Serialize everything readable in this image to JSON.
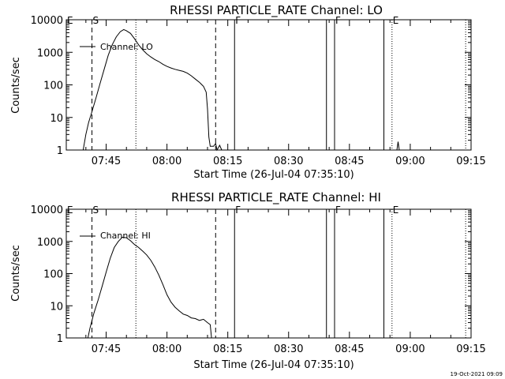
{
  "footer_date": "19-Oct-2021 09:09",
  "chart_data": [
    {
      "type": "line",
      "title": "RHESSI PARTICLE_RATE Channel: LO",
      "xlabel": "Start Time (26-Jul-04 07:35:10)",
      "ylabel": "Counts/sec",
      "y_scale": "log",
      "ylim": [
        1,
        10000
      ],
      "xlim": [
        "07:35:10",
        "09:15:00"
      ],
      "x_ticks": [
        "07:45",
        "08:00",
        "08:15",
        "08:30",
        "08:45",
        "09:00",
        "09:15"
      ],
      "y_ticks": [
        "1",
        "10",
        "100",
        "1000",
        "10000"
      ],
      "legend": {
        "label": "Channel: LO",
        "position": "top-left"
      },
      "markers": [
        {
          "label": "E",
          "time": "07:35:10",
          "style": "none"
        },
        {
          "label": "S",
          "time": "07:41:30",
          "style": "dashed"
        },
        {
          "label": "",
          "time": "07:52:20",
          "style": "dotted"
        },
        {
          "label": "",
          "time": "08:12:00",
          "style": "dashed"
        },
        {
          "label": "F",
          "time": "08:16:40",
          "style": "solid"
        },
        {
          "label": "",
          "time": "08:39:20",
          "style": "solid"
        },
        {
          "label": "F",
          "time": "08:41:20",
          "style": "solid"
        },
        {
          "label": "",
          "time": "08:53:30",
          "style": "solid"
        },
        {
          "label": "E",
          "time": "08:55:30",
          "style": "dotted"
        },
        {
          "label": "",
          "time": "09:13:40",
          "style": "dotted"
        }
      ],
      "series": [
        {
          "name": "Channel: LO",
          "points": [
            [
              "07:39:20",
              1
            ],
            [
              "07:40:00",
              3
            ],
            [
              "07:40:40",
              7
            ],
            [
              "07:41:30",
              15
            ],
            [
              "07:42:30",
              40
            ],
            [
              "07:43:30",
              110
            ],
            [
              "07:44:30",
              300
            ],
            [
              "07:45:30",
              800
            ],
            [
              "07:46:30",
              1700
            ],
            [
              "07:47:30",
              3000
            ],
            [
              "07:48:30",
              4300
            ],
            [
              "07:49:20",
              5000
            ],
            [
              "07:50:00",
              4600
            ],
            [
              "07:51:00",
              3800
            ],
            [
              "07:52:00",
              2600
            ],
            [
              "07:53:00",
              1700
            ],
            [
              "07:54:00",
              1200
            ],
            [
              "07:55:00",
              900
            ],
            [
              "07:56:00",
              720
            ],
            [
              "07:57:00",
              600
            ],
            [
              "07:58:00",
              520
            ],
            [
              "07:59:00",
              430
            ],
            [
              "08:00:00",
              370
            ],
            [
              "08:01:00",
              330
            ],
            [
              "08:02:00",
              300
            ],
            [
              "08:03:00",
              280
            ],
            [
              "08:04:00",
              260
            ],
            [
              "08:05:00",
              230
            ],
            [
              "08:06:00",
              190
            ],
            [
              "08:07:00",
              150
            ],
            [
              "08:08:00",
              120
            ],
            [
              "08:09:00",
              90
            ],
            [
              "08:09:40",
              60
            ],
            [
              "08:10:00",
              18
            ],
            [
              "08:10:20",
              2.5
            ],
            [
              "08:10:40",
              1.3
            ],
            [
              "08:11:30",
              1.3
            ],
            [
              "08:12:00",
              1.6
            ],
            [
              "08:12:20",
              1
            ],
            [
              "08:13:00",
              1.4
            ],
            [
              "08:13:30",
              1
            ]
          ],
          "spikes": [
            [
              "08:57:00",
              1.8
            ]
          ]
        }
      ]
    },
    {
      "type": "line",
      "title": "RHESSI PARTICLE_RATE Channel: HI",
      "xlabel": "Start Time (26-Jul-04 07:35:10)",
      "ylabel": "Counts/sec",
      "y_scale": "log",
      "ylim": [
        1,
        10000
      ],
      "xlim": [
        "07:35:10",
        "09:15:00"
      ],
      "x_ticks": [
        "07:45",
        "08:00",
        "08:15",
        "08:30",
        "08:45",
        "09:00",
        "09:15"
      ],
      "y_ticks": [
        "1",
        "10",
        "100",
        "1000",
        "10000"
      ],
      "legend": {
        "label": "Channel: HI",
        "position": "top-left"
      },
      "markers": [
        {
          "label": "E",
          "time": "07:35:10",
          "style": "none"
        },
        {
          "label": "S",
          "time": "07:41:30",
          "style": "dashed"
        },
        {
          "label": "",
          "time": "07:52:20",
          "style": "dotted"
        },
        {
          "label": "",
          "time": "08:12:00",
          "style": "dashed"
        },
        {
          "label": "F",
          "time": "08:16:40",
          "style": "solid"
        },
        {
          "label": "",
          "time": "08:39:20",
          "style": "solid"
        },
        {
          "label": "F",
          "time": "08:41:20",
          "style": "solid"
        },
        {
          "label": "",
          "time": "08:53:30",
          "style": "solid"
        },
        {
          "label": "E",
          "time": "08:55:30",
          "style": "dotted"
        },
        {
          "label": "",
          "time": "09:13:40",
          "style": "dotted"
        }
      ],
      "series": [
        {
          "name": "Channel: HI",
          "points": [
            [
              "07:40:30",
              1
            ],
            [
              "07:41:00",
              2
            ],
            [
              "07:42:00",
              6
            ],
            [
              "07:43:00",
              15
            ],
            [
              "07:44:00",
              40
            ],
            [
              "07:45:00",
              110
            ],
            [
              "07:46:00",
              300
            ],
            [
              "07:47:00",
              650
            ],
            [
              "07:48:00",
              1000
            ],
            [
              "07:49:00",
              1350
            ],
            [
              "07:50:00",
              1300
            ],
            [
              "07:51:00",
              1050
            ],
            [
              "07:52:00",
              800
            ],
            [
              "07:53:00",
              650
            ],
            [
              "07:54:00",
              500
            ],
            [
              "07:55:00",
              380
            ],
            [
              "07:56:00",
              260
            ],
            [
              "07:57:00",
              160
            ],
            [
              "07:58:00",
              90
            ],
            [
              "07:59:00",
              45
            ],
            [
              "08:00:00",
              22
            ],
            [
              "08:01:00",
              13
            ],
            [
              "08:02:00",
              9
            ],
            [
              "08:03:00",
              7
            ],
            [
              "08:04:00",
              5.5
            ],
            [
              "08:05:00",
              5
            ],
            [
              "08:06:00",
              4.2
            ],
            [
              "08:07:00",
              4
            ],
            [
              "08:08:00",
              3.5
            ],
            [
              "08:09:00",
              3.8
            ],
            [
              "08:10:00",
              3
            ],
            [
              "08:10:40",
              2.6
            ],
            [
              "08:11:00",
              1
            ]
          ],
          "spikes": []
        }
      ]
    }
  ]
}
